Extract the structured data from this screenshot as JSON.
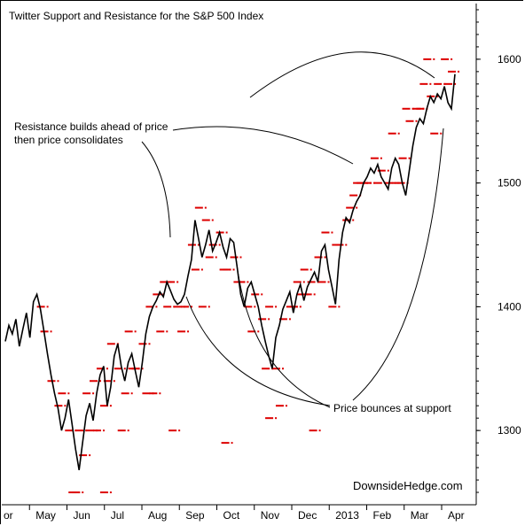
{
  "chart_data": {
    "type": "line",
    "title": "Twitter Support and Resistance for the S&P 500 Index",
    "watermark": "DownsideHedge.com",
    "y_axis": {
      "side": "right",
      "ticks": [
        1300,
        1400,
        1500,
        1600
      ],
      "range": [
        1240,
        1645
      ]
    },
    "x_axis": {
      "labels": [
        "or",
        "May",
        "Jun",
        "Jul",
        "Aug",
        "Sep",
        "Oct",
        "Nov",
        "Dec",
        "2013",
        "Feb",
        "Mar",
        "Apr"
      ]
    },
    "annotations": [
      {
        "text": "Resistance builds ahead of price"
      },
      {
        "text": "then price consolidates"
      },
      {
        "text": "Price bounces at support"
      }
    ],
    "colors": {
      "price": "#000000",
      "tweets": "#dd0000"
    },
    "series": [
      {
        "name": "",
        "kind": "price",
        "x": [
          0,
          4,
          8,
          12,
          16,
          20,
          24,
          28,
          32,
          36,
          40,
          44,
          48,
          52,
          56,
          60,
          64,
          68,
          72,
          76,
          80,
          84,
          88,
          92,
          96,
          100,
          104,
          108,
          112,
          116,
          120,
          124,
          128,
          132,
          136,
          140,
          144,
          148,
          152,
          156,
          160,
          164,
          168,
          172,
          176,
          180,
          184,
          188,
          192,
          196,
          200,
          204,
          208,
          212,
          216,
          220,
          224,
          228,
          232,
          236,
          240,
          244,
          248,
          252,
          256,
          260,
          264,
          268,
          272,
          276,
          280,
          284,
          288,
          292,
          296,
          300,
          304,
          308,
          312,
          316,
          320,
          324,
          328,
          332,
          336,
          340,
          344,
          348,
          352,
          356,
          360,
          364,
          368,
          372,
          376,
          380,
          384,
          388,
          392,
          396,
          400,
          404,
          408,
          412,
          416,
          420,
          424,
          428,
          432,
          436,
          440,
          444,
          448,
          452,
          456,
          460,
          464,
          468,
          472,
          476,
          480,
          484,
          488,
          492,
          496,
          500,
          504,
          508,
          512
        ],
        "y": [
          1372,
          1385,
          1378,
          1390,
          1368,
          1382,
          1395,
          1375,
          1404,
          1410,
          1398,
          1380,
          1362,
          1345,
          1330,
          1318,
          1300,
          1310,
          1325,
          1305,
          1285,
          1268,
          1290,
          1312,
          1322,
          1308,
          1330,
          1345,
          1352,
          1320,
          1335,
          1360,
          1370,
          1352,
          1340,
          1355,
          1362,
          1348,
          1335,
          1355,
          1378,
          1392,
          1400,
          1405,
          1412,
          1408,
          1420,
          1413,
          1406,
          1402,
          1404,
          1410,
          1425,
          1438,
          1470,
          1455,
          1440,
          1450,
          1462,
          1445,
          1452,
          1460,
          1448,
          1440,
          1455,
          1452,
          1432,
          1410,
          1400,
          1415,
          1420,
          1410,
          1400,
          1385,
          1372,
          1360,
          1350,
          1375,
          1385,
          1398,
          1405,
          1412,
          1395,
          1410,
          1418,
          1405,
          1416,
          1422,
          1428,
          1420,
          1445,
          1450,
          1430,
          1416,
          1402,
          1438,
          1460,
          1472,
          1468,
          1478,
          1485,
          1490,
          1500,
          1505,
          1512,
          1508,
          1515,
          1505,
          1500,
          1495,
          1512,
          1520,
          1515,
          1500,
          1490,
          1510,
          1530,
          1545,
          1552,
          1548,
          1560,
          1570,
          1565,
          1572,
          1568,
          1578,
          1565,
          1560,
          1588
        ]
      },
      {
        "name": "",
        "kind": "tweet-levels",
        "x": [
          40,
          44,
          52,
          60,
          64,
          72,
          80,
          88,
          96,
          100,
          108,
          112,
          120,
          128,
          136,
          140,
          148,
          156,
          164,
          172,
          180,
          188,
          196,
          204,
          212,
          220,
          228,
          236,
          244,
          252,
          260,
          268,
          276,
          284,
          292,
          300,
          308,
          316,
          324,
          332,
          340,
          348,
          356,
          364,
          372,
          380,
          388,
          396,
          404,
          412,
          420,
          428,
          436,
          444,
          452,
          460,
          468,
          476,
          484,
          492,
          500,
          508,
          76,
          84,
          92,
          104,
          116,
          132,
          144,
          160,
          176,
          184,
          200,
          216,
          232,
          248,
          264,
          280,
          296,
          312,
          328,
          344,
          360,
          376,
          392,
          408,
          424,
          440,
          456,
          472,
          488,
          504,
          112,
          168,
          224,
          336,
          400,
          480,
          190,
          250,
          300,
          350,
          450
        ],
        "y": [
          1400,
          1380,
          1340,
          1320,
          1330,
          1300,
          1250,
          1280,
          1300,
          1340,
          1350,
          1320,
          1370,
          1350,
          1330,
          1380,
          1350,
          1370,
          1400,
          1410,
          1420,
          1420,
          1400,
          1400,
          1450,
          1480,
          1470,
          1450,
          1460,
          1430,
          1440,
          1420,
          1400,
          1410,
          1390,
          1400,
          1350,
          1390,
          1400,
          1420,
          1430,
          1420,
          1440,
          1460,
          1400,
          1450,
          1470,
          1490,
          1500,
          1500,
          1520,
          1510,
          1500,
          1500,
          1520,
          1550,
          1560,
          1580,
          1570,
          1580,
          1600,
          1590,
          1250,
          1300,
          1330,
          1300,
          1340,
          1300,
          1350,
          1330,
          1380,
          1400,
          1380,
          1430,
          1440,
          1430,
          1420,
          1380,
          1350,
          1320,
          1400,
          1410,
          1420,
          1450,
          1480,
          1500,
          1500,
          1540,
          1560,
          1560,
          1540,
          1580,
          1250,
          1330,
          1400,
          1410,
          1500,
          1600,
          1300,
          1290,
          1310,
          1300,
          1500
        ]
      }
    ]
  }
}
